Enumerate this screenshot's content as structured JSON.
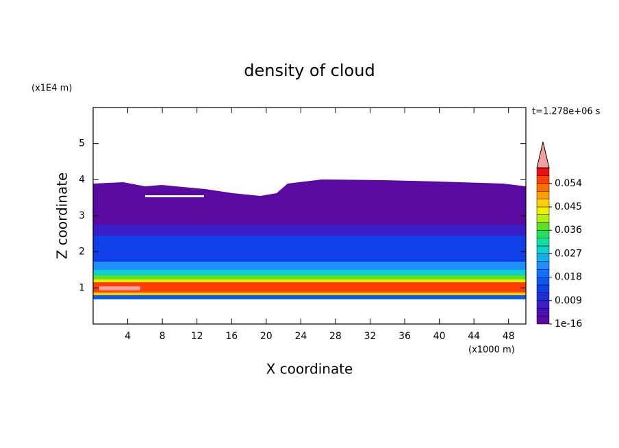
{
  "chart_data": {
    "type": "contour",
    "title": "density of cloud",
    "subtitle": "t=1.278e+06 s",
    "x_label": "X coordinate",
    "x_unit": "(x1000 m)",
    "y_label": "Z coordinate",
    "y_unit": "(x1E4 m)",
    "xlim": [
      0,
      50
    ],
    "xticks": [
      4,
      8,
      12,
      16,
      20,
      24,
      28,
      32,
      36,
      40,
      44,
      48
    ],
    "ylim": [
      0,
      6
    ],
    "yticks": [
      1,
      2,
      3,
      4,
      5
    ],
    "colorbar": {
      "clim": [
        1e-16,
        0.06
      ],
      "ticks": [
        1e-16,
        0.009,
        0.018,
        0.027,
        0.036,
        0.045,
        0.054
      ],
      "colors": [
        "#5a0aa0",
        "#4b10b4",
        "#3a1ec8",
        "#2030d8",
        "#1040e8",
        "#0a58f0",
        "#1070ff",
        "#2090ff",
        "#10b0f0",
        "#10d0d0",
        "#10e0a0",
        "#20e060",
        "#60e020",
        "#b0f010",
        "#f0f000",
        "#ffd000",
        "#ffa000",
        "#ff7000",
        "#ff4000",
        "#e81010"
      ],
      "over_color": "#f4a0a0"
    }
  }
}
